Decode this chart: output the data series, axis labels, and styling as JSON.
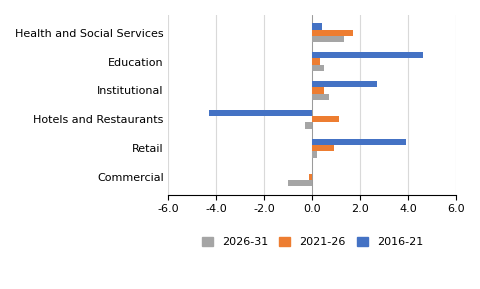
{
  "categories": [
    "Health and Social Services",
    "Education",
    "Institutional",
    "Hotels and Restaurants",
    "Retail",
    "Commercial"
  ],
  "series": {
    "2026-31": [
      1.3,
      0.5,
      0.7,
      -0.3,
      0.2,
      -1.0
    ],
    "2021-26": [
      1.7,
      0.3,
      0.5,
      1.1,
      0.9,
      -0.15
    ],
    "2016-21": [
      0.4,
      4.6,
      2.7,
      -4.3,
      3.9,
      0.0
    ]
  },
  "colors": {
    "2026-31": "#a5a5a5",
    "2021-26": "#ed7d31",
    "2016-21": "#4472c4"
  },
  "xlim": [
    -6.0,
    6.0
  ],
  "xticks": [
    -6.0,
    -4.0,
    -2.0,
    0.0,
    2.0,
    4.0,
    6.0
  ],
  "legend_labels": [
    "2026-31",
    "2021-26",
    "2016-21"
  ],
  "bar_height": 0.22,
  "background_color": "#ffffff"
}
